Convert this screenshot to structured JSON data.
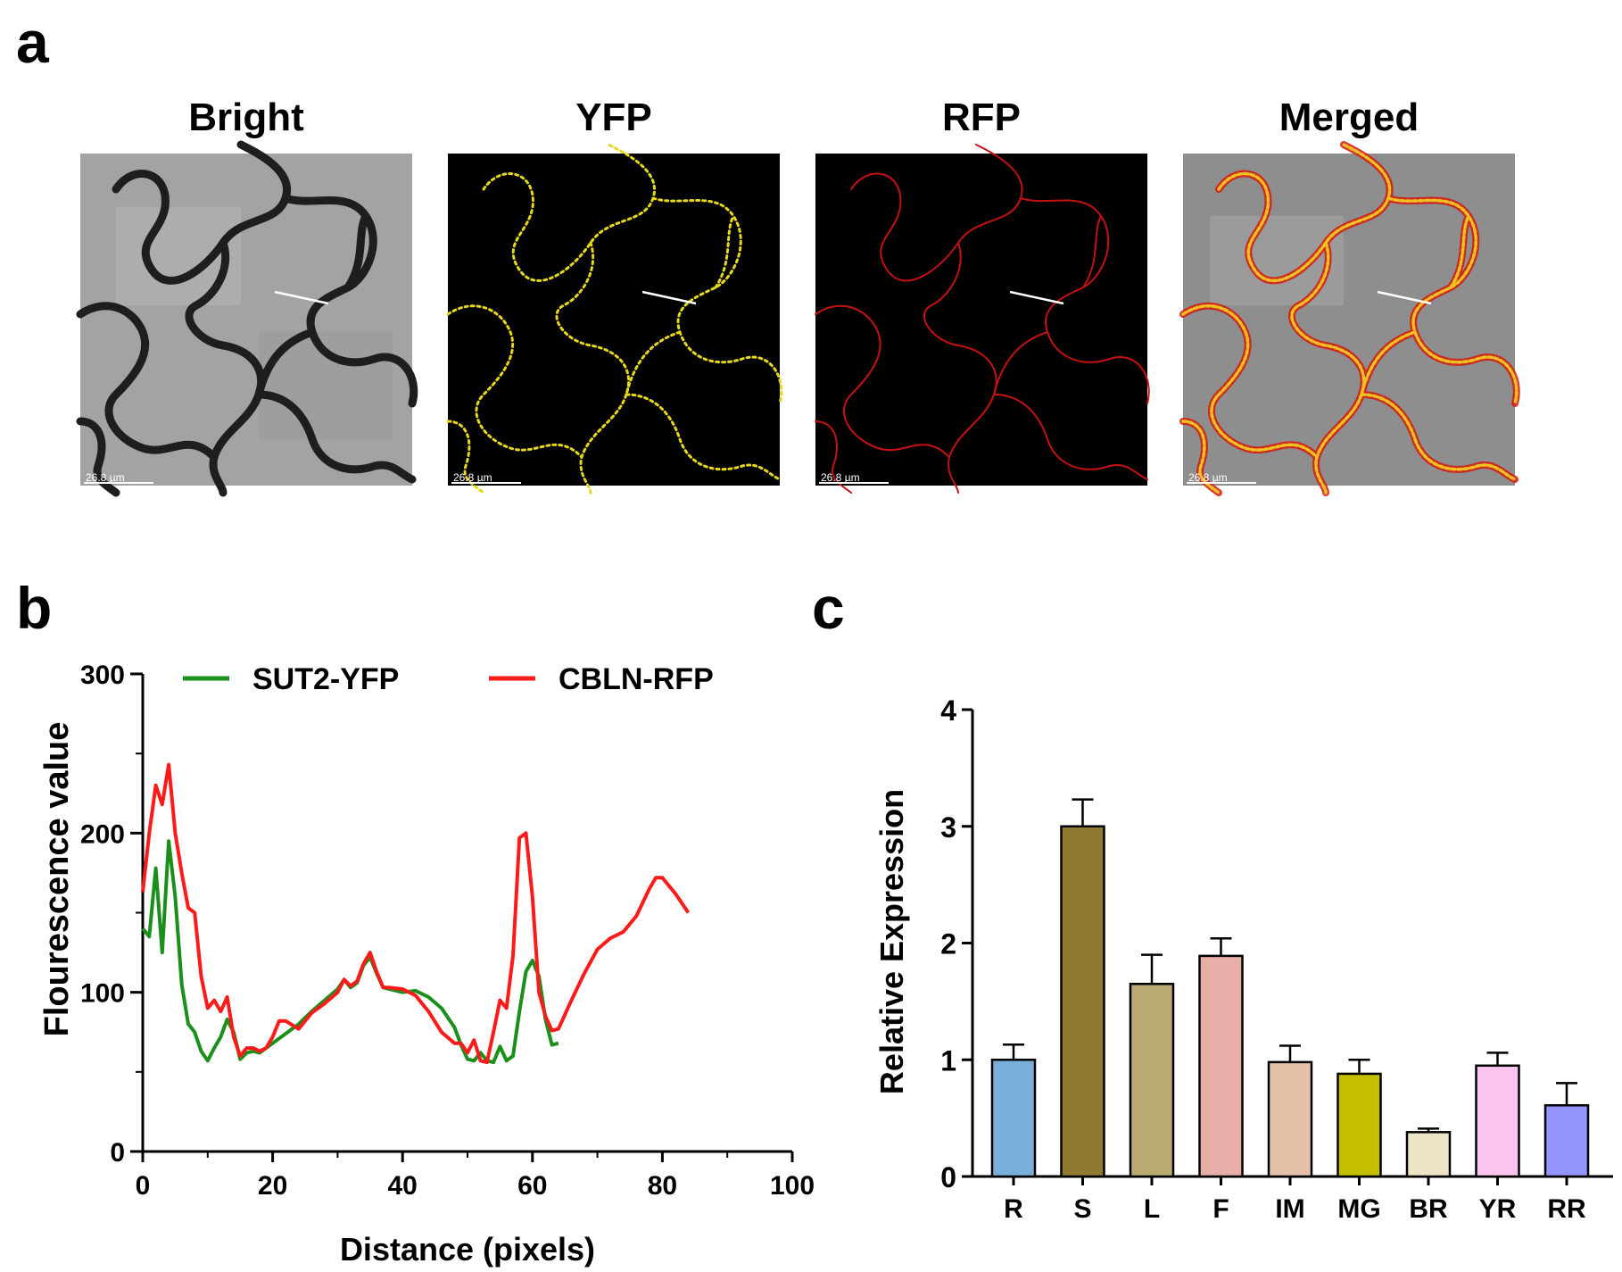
{
  "panel_labels": {
    "a": "a",
    "b": "b",
    "c": "c"
  },
  "micrographs": [
    {
      "title": "Bright",
      "scale_bar": "26.8 µm",
      "kind": "bright"
    },
    {
      "title": "YFP",
      "scale_bar": "26.8 µm",
      "kind": "yfp"
    },
    {
      "title": "RFP",
      "scale_bar": "26.8 µm",
      "kind": "rfp"
    },
    {
      "title": "Merged",
      "scale_bar": "26.8 µm",
      "kind": "merged"
    }
  ],
  "colors": {
    "yfp": "#f2e21a",
    "rfp": "#d81414",
    "sut2_line": "#1a8f1a",
    "cbln_line": "#ff1a1a",
    "bar_colors": [
      "#7aaedb",
      "#8f7a30",
      "#b9aa72",
      "#e8afa8",
      "#e4c0a8",
      "#c4c000",
      "#ece4c4",
      "#fbc4ee",
      "#9494ff"
    ]
  },
  "chart_data": [
    {
      "type": "line",
      "xlabel": "Distance (pixels)",
      "ylabel": "Flourescence value",
      "xlim": [
        0,
        100
      ],
      "ylim": [
        0,
        300
      ],
      "xticks": [
        0,
        20,
        40,
        60,
        80,
        100
      ],
      "yticks": [
        0,
        100,
        200,
        300
      ],
      "legend_position": "top",
      "series": [
        {
          "name": "SUT2-YFP",
          "x": [
            0,
            1,
            2,
            3,
            4,
            5,
            6,
            7,
            8,
            9,
            10,
            11,
            12,
            13,
            14,
            15,
            16,
            17,
            18,
            19,
            20,
            22,
            24,
            26,
            28,
            30,
            31,
            32,
            33,
            34,
            35,
            36,
            37,
            38,
            40,
            42,
            44,
            46,
            48,
            49,
            50,
            51,
            52,
            53,
            54,
            55,
            56,
            57,
            58,
            59,
            60,
            61,
            62,
            63,
            64
          ],
          "y": [
            140,
            135,
            178,
            125,
            195,
            160,
            105,
            80,
            75,
            63,
            57,
            65,
            72,
            83,
            75,
            58,
            62,
            63,
            62,
            65,
            68,
            74,
            80,
            88,
            95,
            102,
            108,
            103,
            106,
            117,
            122,
            112,
            103,
            102,
            100,
            101,
            97,
            90,
            78,
            67,
            58,
            57,
            62,
            57,
            56,
            66,
            57,
            60,
            88,
            113,
            120,
            110,
            83,
            67,
            68
          ]
        },
        {
          "name": "CBLN-RFP",
          "x": [
            0,
            1,
            2,
            3,
            4,
            5,
            6,
            7,
            8,
            9,
            10,
            11,
            12,
            13,
            14,
            15,
            16,
            17,
            18,
            19,
            20,
            21,
            22,
            24,
            26,
            28,
            30,
            31,
            32,
            33,
            34,
            35,
            36,
            37,
            38,
            40,
            42,
            44,
            46,
            48,
            49,
            50,
            51,
            52,
            53,
            54,
            55,
            56,
            57,
            58,
            59,
            60,
            61,
            62,
            63,
            64,
            66,
            68,
            70,
            72,
            74,
            76,
            78,
            79,
            80,
            82,
            84
          ],
          "y": [
            163,
            200,
            230,
            218,
            243,
            200,
            175,
            153,
            150,
            110,
            90,
            95,
            88,
            97,
            72,
            60,
            65,
            65,
            63,
            65,
            72,
            82,
            82,
            77,
            87,
            93,
            100,
            108,
            104,
            107,
            118,
            125,
            113,
            103,
            103,
            102,
            98,
            88,
            75,
            68,
            68,
            62,
            70,
            57,
            56,
            75,
            95,
            90,
            123,
            197,
            200,
            160,
            100,
            85,
            76,
            77,
            95,
            112,
            127,
            134,
            138,
            148,
            165,
            172,
            172,
            162,
            150
          ]
        }
      ]
    },
    {
      "type": "bar",
      "xlabel": "",
      "ylabel": "Relative Expression",
      "ylim": [
        0,
        4
      ],
      "yticks": [
        0,
        1,
        2,
        3,
        4
      ],
      "categories": [
        "R",
        "S",
        "L",
        "F",
        "IM",
        "MG",
        "BR",
        "YR",
        "RR"
      ],
      "values": [
        1.0,
        3.0,
        1.65,
        1.89,
        0.98,
        0.88,
        0.38,
        0.95,
        0.61
      ],
      "errors": [
        0.13,
        0.23,
        0.25,
        0.15,
        0.14,
        0.12,
        0.03,
        0.11,
        0.19
      ]
    }
  ]
}
